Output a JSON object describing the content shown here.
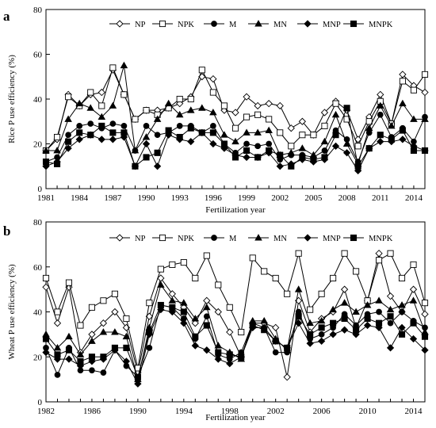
{
  "chart_data": [
    {
      "panel": "a",
      "type": "line",
      "xlabel": "Fertilization year",
      "ylabel": "Rice P use efficiency (%)",
      "xlim": [
        1981,
        2015
      ],
      "ylim": [
        0,
        80
      ],
      "xticks": [
        1981,
        1984,
        1987,
        1990,
        1993,
        1996,
        1999,
        2002,
        2005,
        2008,
        2011,
        2014
      ],
      "yticks": [
        0,
        20,
        40,
        60,
        80
      ],
      "legend_position": "top",
      "x": [
        1981,
        1982,
        1983,
        1984,
        1985,
        1986,
        1987,
        1988,
        1989,
        1990,
        1991,
        1992,
        1993,
        1994,
        1995,
        1996,
        1997,
        1998,
        1999,
        2000,
        2001,
        2002,
        2003,
        2004,
        2005,
        2006,
        2007,
        2008,
        2009,
        2010,
        2011,
        2012,
        2013,
        2014,
        2015
      ],
      "series": [
        {
          "name": "NP",
          "marker": "diamond-open",
          "values": [
            17,
            22,
            42,
            37,
            42,
            43,
            53,
            42,
            31,
            35,
            35,
            36,
            38,
            41,
            50,
            49,
            35,
            34,
            41,
            37,
            38,
            37,
            27,
            30,
            24,
            34,
            39,
            35,
            22,
            32,
            42,
            29,
            51,
            46,
            43
          ]
        },
        {
          "name": "NPK",
          "marker": "square-open",
          "values": [
            17,
            23,
            41,
            37,
            43,
            37,
            54,
            42,
            31,
            35,
            33,
            36,
            40,
            40,
            53,
            43,
            37,
            27,
            32,
            33,
            31,
            25,
            19,
            24,
            24,
            28,
            38,
            31,
            19,
            30,
            39,
            29,
            48,
            44,
            51
          ]
        },
        {
          "name": "M",
          "marker": "circle-filled",
          "values": [
            12,
            14,
            24,
            28,
            29,
            27,
            29,
            28,
            17,
            28,
            24,
            25,
            28,
            28,
            25,
            28,
            20,
            16,
            20,
            19,
            20,
            13,
            15,
            15,
            14,
            17,
            26,
            22,
            12,
            25,
            33,
            23,
            27,
            21,
            32
          ]
        },
        {
          "name": "MN",
          "marker": "triangle-filled",
          "values": [
            17,
            17,
            31,
            38,
            36,
            32,
            37,
            55,
            17,
            23,
            31,
            38,
            33,
            35,
            36,
            34,
            24,
            21,
            25,
            25,
            26,
            15,
            16,
            18,
            15,
            21,
            33,
            20,
            11,
            27,
            37,
            28,
            38,
            31,
            31
          ]
        },
        {
          "name": "MNP",
          "marker": "diamond-filled",
          "values": [
            10,
            12,
            18,
            22,
            24,
            22,
            22,
            23,
            10,
            20,
            10,
            24,
            22,
            21,
            25,
            20,
            18,
            15,
            14,
            14,
            16,
            10,
            11,
            13,
            12,
            13,
            19,
            16,
            8,
            18,
            21,
            21,
            22,
            19,
            17
          ]
        },
        {
          "name": "MNPK",
          "marker": "square-filled",
          "values": [
            12,
            11,
            21,
            25,
            24,
            28,
            25,
            25,
            10,
            14,
            16,
            26,
            23,
            27,
            25,
            25,
            20,
            14,
            17,
            14,
            17,
            15,
            10,
            14,
            13,
            14,
            24,
            36,
            10,
            18,
            24,
            22,
            26,
            17,
            17
          ]
        }
      ]
    },
    {
      "panel": "b",
      "type": "line",
      "xlabel": "Fertilization year",
      "ylabel": "Wheat P use efficiency (%)",
      "xlim": [
        1982,
        2015
      ],
      "ylim": [
        0,
        80
      ],
      "xticks": [
        1982,
        1986,
        1990,
        1994,
        1998,
        2002,
        2006,
        2010,
        2014
      ],
      "yticks": [
        0,
        20,
        40,
        60,
        80
      ],
      "legend_position": "top",
      "x": [
        1982,
        1983,
        1984,
        1985,
        1986,
        1987,
        1988,
        1989,
        1990,
        1991,
        1992,
        1993,
        1994,
        1995,
        1996,
        1997,
        1998,
        1999,
        2000,
        2001,
        2002,
        2003,
        2004,
        2005,
        2006,
        2007,
        2008,
        2009,
        2010,
        2011,
        2012,
        2013,
        2014,
        2015
      ],
      "series": [
        {
          "name": "NP",
          "marker": "diamond-open",
          "values": [
            51,
            35,
            51,
            22,
            30,
            35,
            40,
            33,
            13,
            38,
            55,
            48,
            42,
            35,
            45,
            40,
            31,
            20,
            35,
            35,
            33,
            11,
            45,
            31,
            37,
            40,
            50,
            33,
            45,
            66,
            47,
            40,
            50,
            39
          ]
        },
        {
          "name": "NPK",
          "marker": "square-open",
          "values": [
            55,
            40,
            53,
            34,
            42,
            45,
            48,
            37,
            15,
            44,
            59,
            61,
            62,
            55,
            65,
            52,
            42,
            31,
            64,
            58,
            55,
            48,
            66,
            41,
            48,
            55,
            66,
            58,
            45,
            63,
            66,
            55,
            61,
            44
          ]
        },
        {
          "name": "M",
          "marker": "circle-filled",
          "values": [
            24,
            12,
            24,
            14,
            14,
            13,
            23,
            16,
            11,
            24,
            43,
            42,
            37,
            28,
            38,
            21,
            19,
            22,
            35,
            33,
            22,
            22,
            40,
            28,
            30,
            33,
            39,
            34,
            39,
            40,
            35,
            40,
            36,
            33
          ]
        },
        {
          "name": "MN",
          "marker": "triangle-filled",
          "values": [
            30,
            24,
            29,
            21,
            27,
            31,
            31,
            29,
            10,
            33,
            52,
            45,
            44,
            37,
            42,
            25,
            22,
            19,
            36,
            36,
            28,
            23,
            50,
            35,
            36,
            41,
            44,
            40,
            43,
            45,
            41,
            43,
            45,
            31
          ]
        },
        {
          "name": "MNP",
          "marker": "diamond-filled",
          "values": [
            22,
            19,
            19,
            16,
            18,
            19,
            23,
            18,
            8,
            30,
            41,
            40,
            35,
            25,
            23,
            19,
            17,
            20,
            33,
            33,
            27,
            24,
            35,
            26,
            27,
            30,
            32,
            30,
            34,
            33,
            24,
            33,
            28,
            23
          ]
        },
        {
          "name": "MNPK",
          "marker": "square-filled",
          "values": [
            28,
            21,
            23,
            18,
            20,
            20,
            24,
            24,
            11,
            31,
            43,
            42,
            40,
            29,
            34,
            22,
            21,
            20,
            34,
            32,
            27,
            24,
            38,
            30,
            33,
            35,
            37,
            32,
            37,
            35,
            38,
            30,
            35,
            29
          ]
        }
      ]
    }
  ]
}
